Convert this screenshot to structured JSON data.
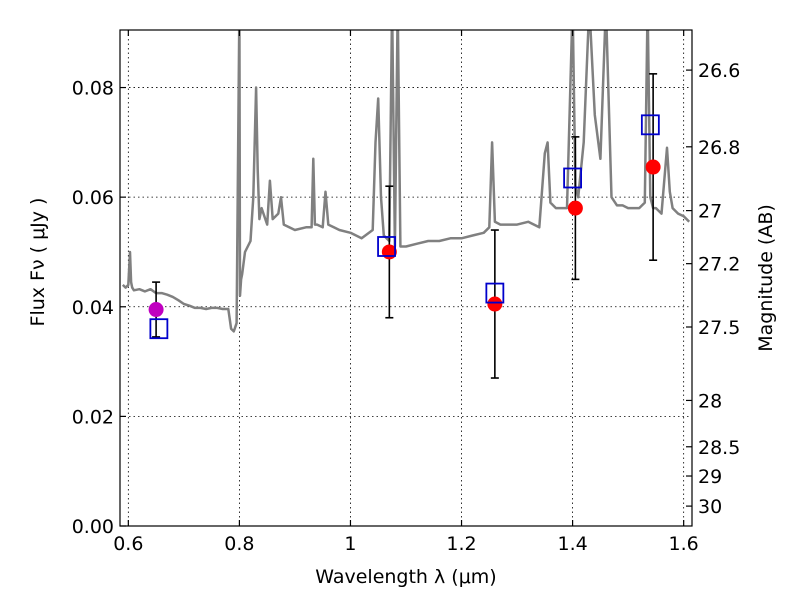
{
  "chart_data": {
    "type": "scatter",
    "xlabel": "Wavelength  λ (μm)",
    "ylabel": "Flux  Fν  ( μJy )",
    "y2label": "Magnitude (AB)",
    "xlim": [
      0.585,
      1.615
    ],
    "ylim": [
      0.0,
      0.0905
    ],
    "grid": true,
    "x_ticks": [
      0.6,
      0.8,
      1.0,
      1.2,
      1.4,
      1.6
    ],
    "x_tick_labels": [
      "0.6",
      "0.8",
      "1",
      "1.2",
      "1.4",
      "1.6"
    ],
    "y_ticks": [
      0.0,
      0.02,
      0.04,
      0.06,
      0.08
    ],
    "y_tick_labels": [
      "0.00",
      "0.02",
      "0.04",
      "0.06",
      "0.08"
    ],
    "mag_ticks": [
      26.6,
      26.8,
      27,
      27.2,
      27.5,
      28,
      28.5,
      29,
      30
    ],
    "mag_tick_labels": [
      "26.6",
      "26.8",
      "27",
      "27.2",
      "27.5",
      "28",
      "28.5",
      "29",
      "30"
    ],
    "series": [
      {
        "kind": "model_spectrum",
        "color": "#808080",
        "x": [
          0.59,
          0.595,
          0.6,
          0.603,
          0.605,
          0.607,
          0.61,
          0.62,
          0.63,
          0.64,
          0.65,
          0.66,
          0.67,
          0.68,
          0.69,
          0.7,
          0.71,
          0.72,
          0.73,
          0.74,
          0.75,
          0.76,
          0.77,
          0.78,
          0.785,
          0.79,
          0.795,
          0.8,
          0.801,
          0.803,
          0.805,
          0.81,
          0.82,
          0.825,
          0.83,
          0.833,
          0.836,
          0.84,
          0.85,
          0.855,
          0.86,
          0.87,
          0.875,
          0.88,
          0.9,
          0.92,
          0.93,
          0.933,
          0.936,
          0.94,
          0.95,
          0.955,
          0.96,
          0.97,
          0.98,
          1.0,
          1.02,
          1.04,
          1.045,
          1.05,
          1.055,
          1.06,
          1.07,
          1.075,
          1.08,
          1.085,
          1.09,
          1.1,
          1.12,
          1.14,
          1.16,
          1.18,
          1.2,
          1.22,
          1.24,
          1.25,
          1.255,
          1.26,
          1.27,
          1.28,
          1.3,
          1.32,
          1.34,
          1.35,
          1.355,
          1.36,
          1.37,
          1.38,
          1.39,
          1.4,
          1.405,
          1.41,
          1.42,
          1.43,
          1.44,
          1.45,
          1.46,
          1.47,
          1.48,
          1.49,
          1.5,
          1.51,
          1.52,
          1.53,
          1.535,
          1.54,
          1.545,
          1.55,
          1.56,
          1.57,
          1.575,
          1.58,
          1.59,
          1.6,
          1.61
        ],
        "y": [
          0.044,
          0.0435,
          0.044,
          0.05,
          0.0445,
          0.0435,
          0.043,
          0.0432,
          0.0428,
          0.0432,
          0.0425,
          0.0425,
          0.0422,
          0.0418,
          0.0412,
          0.0405,
          0.0402,
          0.0398,
          0.0398,
          0.0396,
          0.0398,
          0.0398,
          0.0396,
          0.0396,
          0.036,
          0.0355,
          0.037,
          0.095,
          0.042,
          0.045,
          0.046,
          0.05,
          0.052,
          0.06,
          0.08,
          0.065,
          0.056,
          0.058,
          0.055,
          0.063,
          0.056,
          0.057,
          0.06,
          0.055,
          0.054,
          0.0545,
          0.0545,
          0.067,
          0.055,
          0.055,
          0.0545,
          0.061,
          0.055,
          0.0545,
          0.054,
          0.0535,
          0.0525,
          0.054,
          0.07,
          0.078,
          0.06,
          0.053,
          0.052,
          0.095,
          0.051,
          0.095,
          0.051,
          0.051,
          0.0515,
          0.052,
          0.052,
          0.0525,
          0.0525,
          0.053,
          0.0535,
          0.0545,
          0.07,
          0.0555,
          0.055,
          0.055,
          0.055,
          0.0555,
          0.0545,
          0.068,
          0.07,
          0.059,
          0.058,
          0.058,
          0.058,
          0.095,
          0.062,
          0.06,
          0.07,
          0.095,
          0.075,
          0.067,
          0.095,
          0.06,
          0.0585,
          0.0585,
          0.058,
          0.058,
          0.058,
          0.059,
          0.095,
          0.06,
          0.058,
          0.058,
          0.057,
          0.069,
          0.061,
          0.058,
          0.057,
          0.0565,
          0.0555
        ]
      },
      {
        "kind": "observed_points",
        "color": "#ff0000",
        "x": [
          1.07,
          1.26,
          1.405,
          1.545
        ],
        "y": [
          0.05,
          0.0405,
          0.058,
          0.0655
        ],
        "yerr": [
          0.012,
          0.0135,
          0.013,
          0.017
        ]
      },
      {
        "kind": "observed_point_optical",
        "color": "#c000c0",
        "x": [
          0.65
        ],
        "y": [
          0.0395
        ],
        "yerr": [
          0.005
        ]
      },
      {
        "kind": "model_photometry",
        "color": "#0000cc",
        "x": [
          0.655,
          1.065,
          1.26,
          1.4,
          1.54
        ],
        "y": [
          0.036,
          0.051,
          0.0425,
          0.0635,
          0.0732
        ]
      }
    ]
  }
}
